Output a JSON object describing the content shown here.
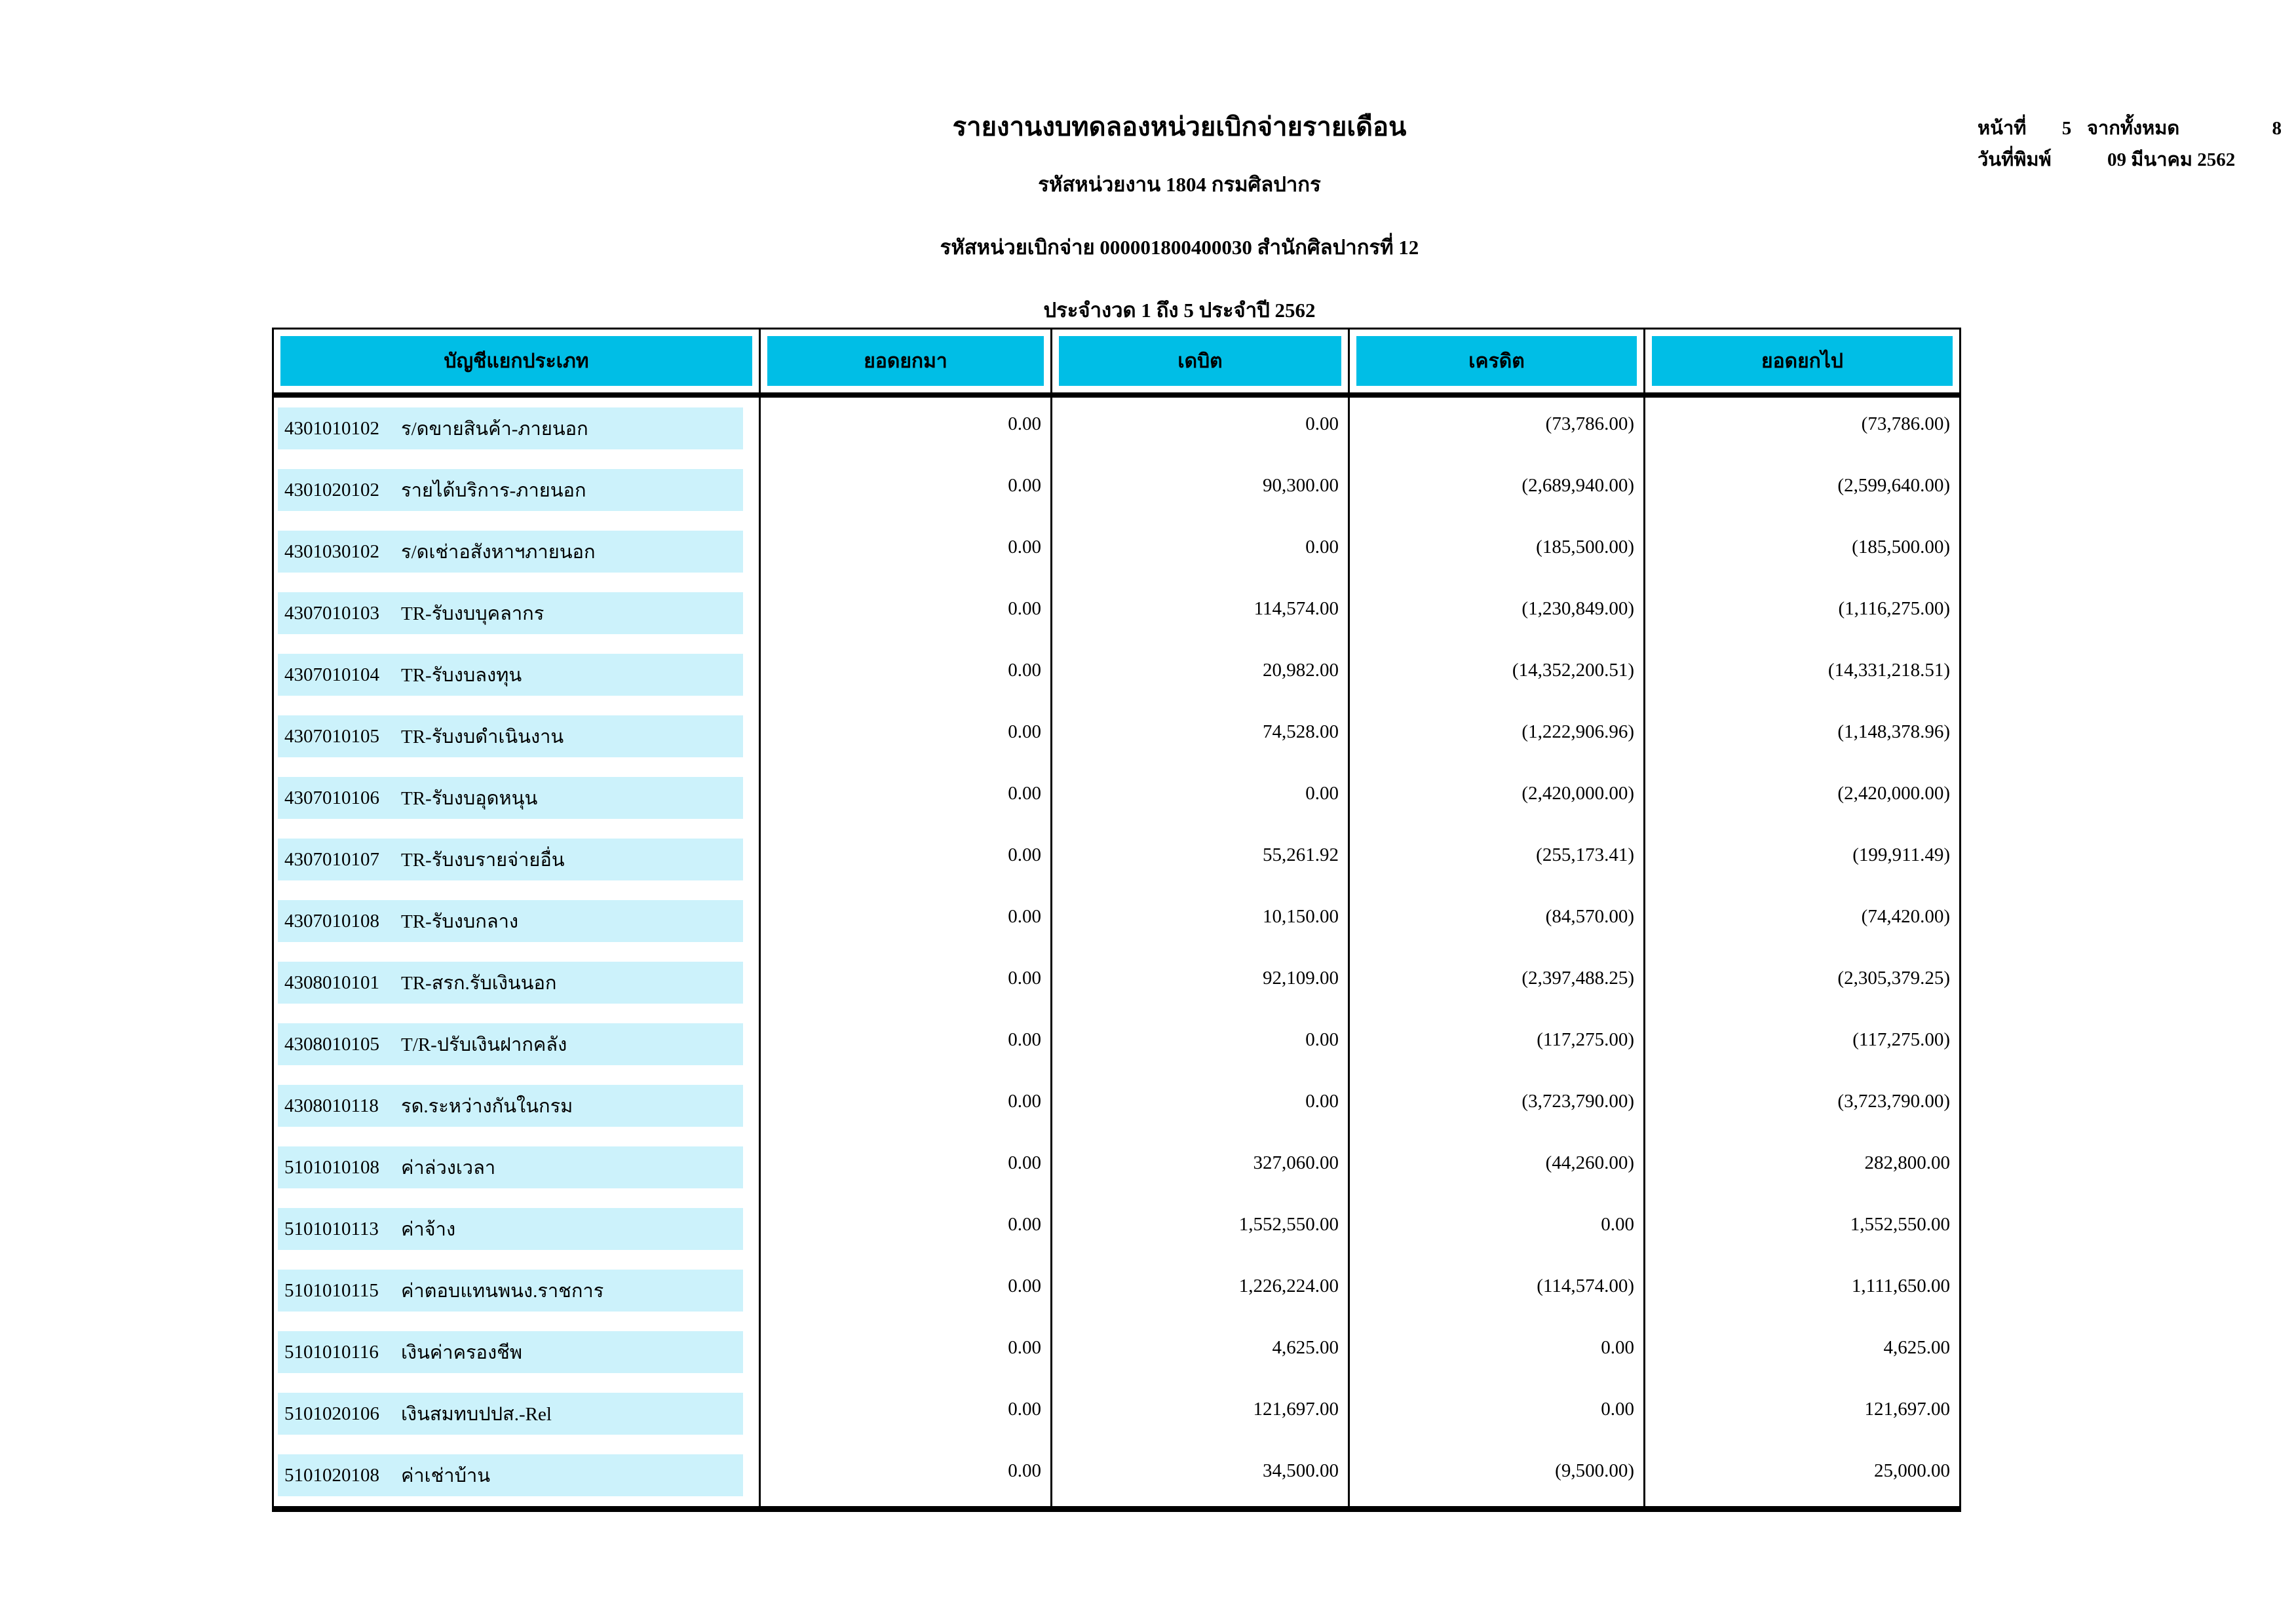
{
  "report_header": {
    "title": "รายงานงบทดลองหน่วยเบิกจ่ายรายเดือน",
    "agency_line": "รหัสหน่วยงาน 1804 กรมศิลปากร",
    "disbursing_unit_line": "รหัสหน่วยเบิกจ่าย 000001800400030 สำนักศิลปากรที่ 12",
    "period_line": "ประจำงวด 1 ถึง 5 ประจำปี 2562"
  },
  "page_info": {
    "page_label": "หน้าที่",
    "page_number": "5",
    "total_label": "จากทั้งหมด",
    "total_pages": "8",
    "print_date_label": "วันที่พิมพ์",
    "print_date": "09 มีนาคม 2562"
  },
  "table": {
    "columns": [
      "บัญชีแยกประเภท",
      "ยอดยกมา",
      "เดบิต",
      "เครดิต",
      "ยอดยกไป"
    ],
    "rows": [
      {
        "code": "4301010102",
        "name": "ร/ดขายสินค้า-ภายนอก",
        "opening": "0.00",
        "debit": "0.00",
        "credit": "(73,786.00)",
        "closing": "(73,786.00)"
      },
      {
        "code": "4301020102",
        "name": "รายได้บริการ-ภายนอก",
        "opening": "0.00",
        "debit": "90,300.00",
        "credit": "(2,689,940.00)",
        "closing": "(2,599,640.00)"
      },
      {
        "code": "4301030102",
        "name": "ร/ดเช่าอสังหาฯภายนอก",
        "opening": "0.00",
        "debit": "0.00",
        "credit": "(185,500.00)",
        "closing": "(185,500.00)"
      },
      {
        "code": "4307010103",
        "name": "TR-รับงบบุคลากร",
        "opening": "0.00",
        "debit": "114,574.00",
        "credit": "(1,230,849.00)",
        "closing": "(1,116,275.00)"
      },
      {
        "code": "4307010104",
        "name": "TR-รับงบลงทุน",
        "opening": "0.00",
        "debit": "20,982.00",
        "credit": "(14,352,200.51)",
        "closing": "(14,331,218.51)"
      },
      {
        "code": "4307010105",
        "name": "TR-รับงบดำเนินงาน",
        "opening": "0.00",
        "debit": "74,528.00",
        "credit": "(1,222,906.96)",
        "closing": "(1,148,378.96)"
      },
      {
        "code": "4307010106",
        "name": "TR-รับงบอุดหนุน",
        "opening": "0.00",
        "debit": "0.00",
        "credit": "(2,420,000.00)",
        "closing": "(2,420,000.00)"
      },
      {
        "code": "4307010107",
        "name": "TR-รับงบรายจ่ายอื่น",
        "opening": "0.00",
        "debit": "55,261.92",
        "credit": "(255,173.41)",
        "closing": "(199,911.49)"
      },
      {
        "code": "4307010108",
        "name": "TR-รับงบกลาง",
        "opening": "0.00",
        "debit": "10,150.00",
        "credit": "(84,570.00)",
        "closing": "(74,420.00)"
      },
      {
        "code": "4308010101",
        "name": "TR-สรก.รับเงินนอก",
        "opening": "0.00",
        "debit": "92,109.00",
        "credit": "(2,397,488.25)",
        "closing": "(2,305,379.25)"
      },
      {
        "code": "4308010105",
        "name": "T/R-ปรับเงินฝากคลัง",
        "opening": "0.00",
        "debit": "0.00",
        "credit": "(117,275.00)",
        "closing": "(117,275.00)"
      },
      {
        "code": "4308010118",
        "name": "รด.ระหว่างกันในกรม",
        "opening": "0.00",
        "debit": "0.00",
        "credit": "(3,723,790.00)",
        "closing": "(3,723,790.00)"
      },
      {
        "code": "5101010108",
        "name": "ค่าล่วงเวลา",
        "opening": "0.00",
        "debit": "327,060.00",
        "credit": "(44,260.00)",
        "closing": "282,800.00"
      },
      {
        "code": "5101010113",
        "name": "ค่าจ้าง",
        "opening": "0.00",
        "debit": "1,552,550.00",
        "credit": "0.00",
        "closing": "1,552,550.00"
      },
      {
        "code": "5101010115",
        "name": "ค่าตอบแทนพนง.ราชการ",
        "opening": "0.00",
        "debit": "1,226,224.00",
        "credit": "(114,574.00)",
        "closing": "1,111,650.00"
      },
      {
        "code": "5101010116",
        "name": "เงินค่าครองชีพ",
        "opening": "0.00",
        "debit": "4,625.00",
        "credit": "0.00",
        "closing": "4,625.00"
      },
      {
        "code": "5101020106",
        "name": "เงินสมทบปปส.-Rel",
        "opening": "0.00",
        "debit": "121,697.00",
        "credit": "0.00",
        "closing": "121,697.00"
      },
      {
        "code": "5101020108",
        "name": "ค่าเช่าบ้าน",
        "opening": "0.00",
        "debit": "34,500.00",
        "credit": "(9,500.00)",
        "closing": "25,000.00"
      }
    ]
  },
  "colors": {
    "header_fill": "#00bee6",
    "row_fill": "#ccf2fb",
    "border": "#000000",
    "text": "#000000",
    "background": "#ffffff"
  }
}
